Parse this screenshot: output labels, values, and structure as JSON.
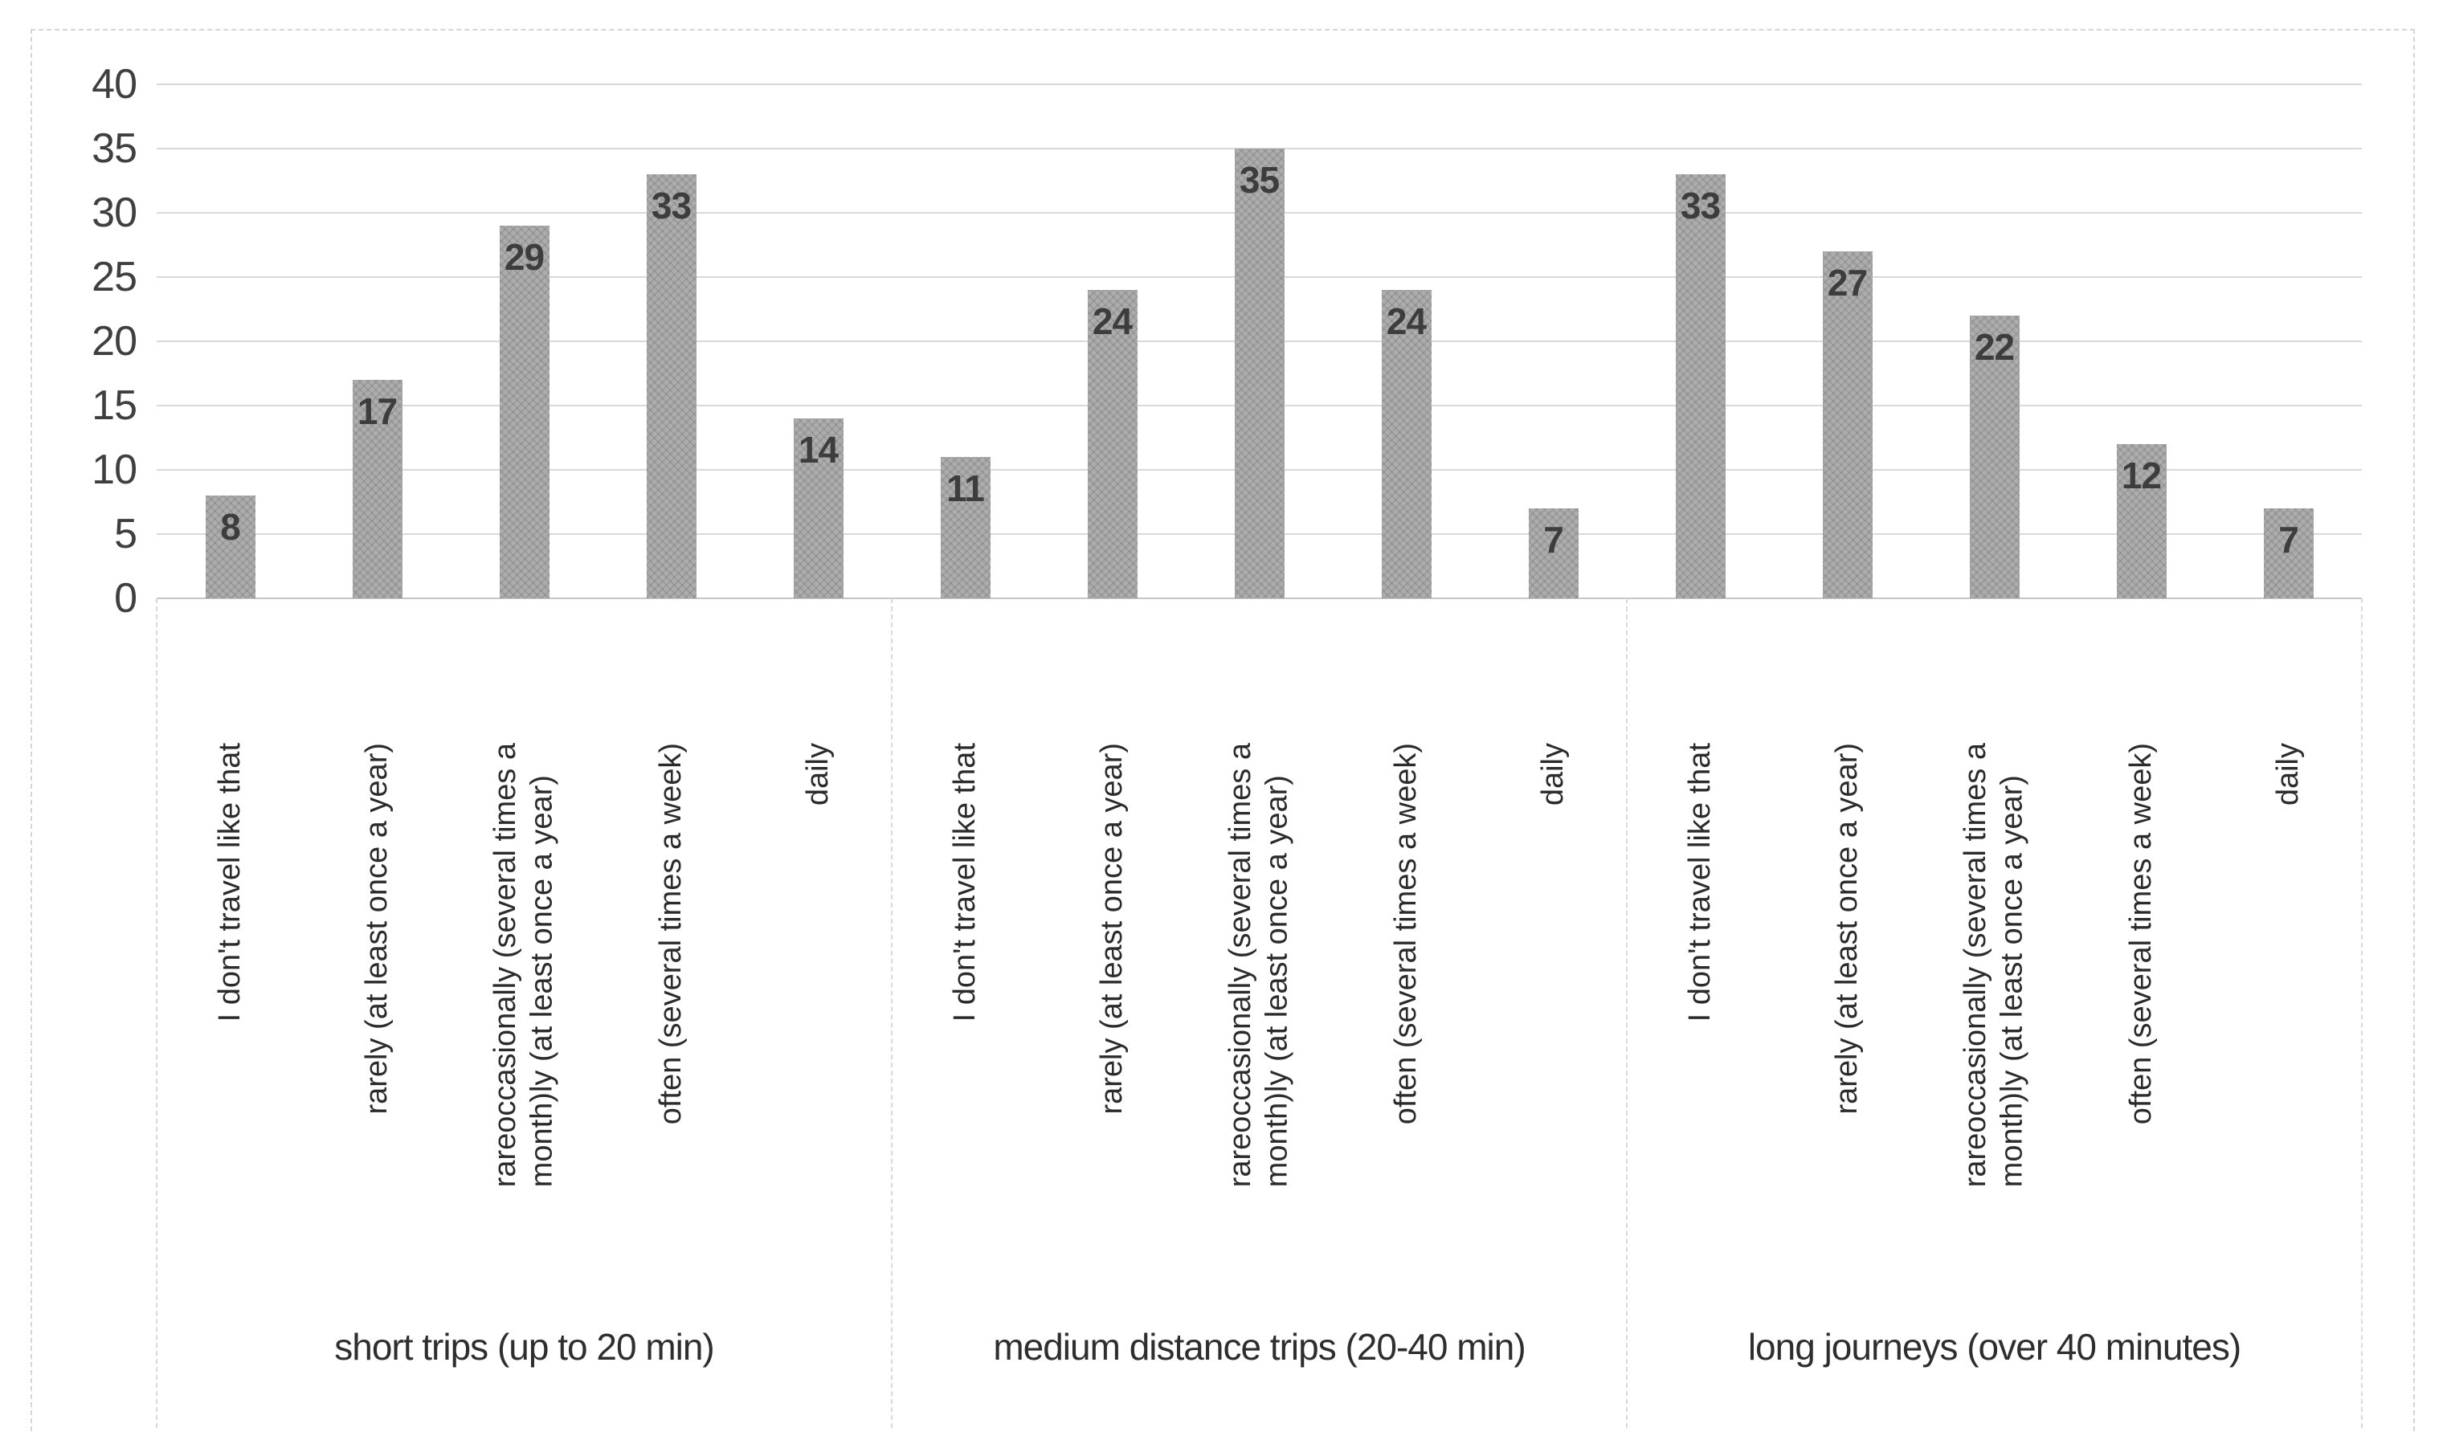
{
  "chart_data": {
    "type": "bar",
    "title": "",
    "grid": true,
    "legend": "none",
    "bar_value_labels": true,
    "y_axis": {
      "min": 0,
      "max": 40,
      "step": 5,
      "ticks": [
        40,
        35,
        30,
        25,
        20,
        15,
        10,
        5,
        0
      ]
    },
    "ylim": [
      0,
      40
    ],
    "categories": [
      "I don't travel like that",
      "rarely (at least once a year)",
      "rareoccasionally (several times a\nmonth)ly (at least once a year)",
      "often (several times a week)",
      "daily"
    ],
    "groups": [
      {
        "label": "short trips (up to 20 min)",
        "values": [
          8,
          17,
          29,
          33,
          14
        ]
      },
      {
        "label": "medium distance trips (20-40 min)",
        "values": [
          11,
          24,
          35,
          24,
          7
        ]
      },
      {
        "label": "long journeys (over 40 minutes)",
        "values": [
          33,
          27,
          22,
          12,
          7
        ]
      }
    ],
    "colors": {
      "bar": "#adadad",
      "gridline": "#d9d9d9",
      "axis_text": "#3f3f3f",
      "category_text": "#2b2b2b",
      "data_label_text": "#3d3d3d",
      "border": "#d6d6d6",
      "background": "#ffffff"
    }
  }
}
